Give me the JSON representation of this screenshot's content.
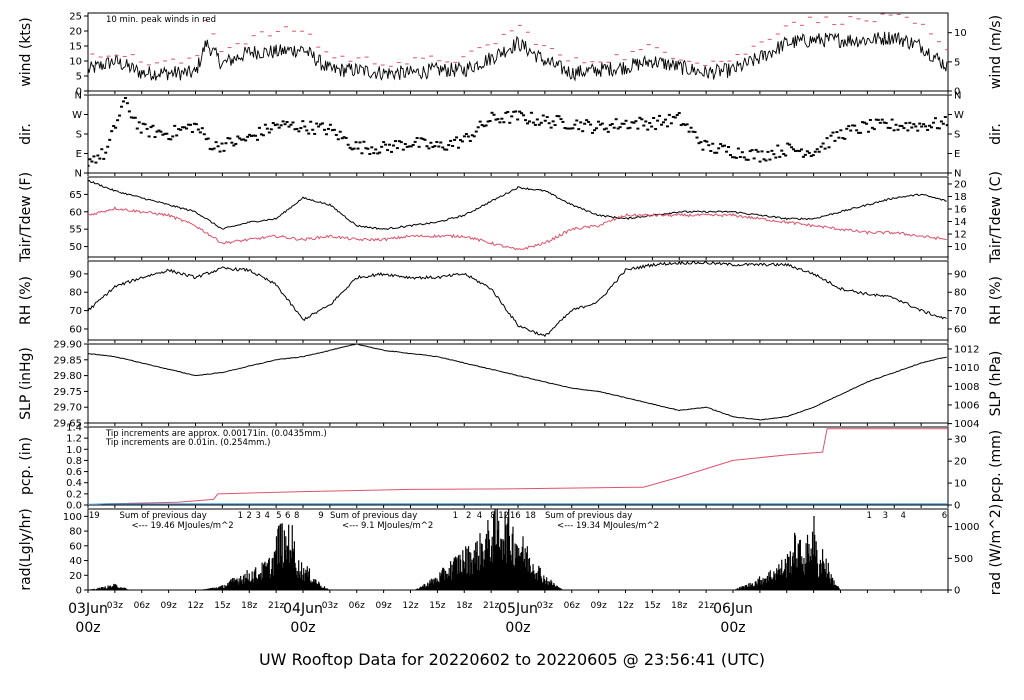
{
  "title": "UW Rooftop Data for 20220602  to  20220605 @ 23:56:41  (UTC)",
  "colors": {
    "red": "#df536b",
    "blue": "#2297e6",
    "purple": "#9b30e6",
    "title": "#2297e6",
    "line": "#000000"
  },
  "x_axis": {
    "hours_ticks": [
      "03z",
      "06z",
      "09z",
      "12z",
      "15z",
      "18z",
      "21z",
      "03z",
      "06z",
      "09z",
      "12z",
      "15z",
      "18z",
      "21z",
      "03z",
      "06z",
      "09z",
      "12z",
      "15z",
      "18z",
      "21z"
    ],
    "day_labels": [
      {
        "top": "03Jun",
        "bottom": "00z"
      },
      {
        "top": "04Jun",
        "bottom": "00z"
      },
      {
        "top": "05Jun",
        "bottom": "00z"
      },
      {
        "top": "06Jun",
        "bottom": "00z"
      }
    ]
  },
  "chart_data": [
    {
      "type": "line",
      "panel": "wind",
      "ylabel": "wind (kts)",
      "ylabel_right": "wind (m/s)",
      "ylim": [
        0,
        26
      ],
      "yticks": [
        0,
        5,
        10,
        15,
        20,
        25
      ],
      "yticks_right": [
        0,
        5,
        10
      ],
      "annotation": "10 min. peak winds in red",
      "x_hours": [
        0,
        3,
        6,
        9,
        12,
        13.2,
        15,
        18,
        21,
        24,
        27,
        30,
        33,
        36,
        39,
        42,
        45,
        48,
        51,
        54,
        57,
        60,
        63,
        66,
        69,
        72,
        75,
        78,
        81,
        84,
        87,
        90,
        93,
        96
      ],
      "series": [
        {
          "values": [
            7,
            10,
            6,
            6,
            6,
            16,
            9,
            13,
            13,
            14,
            7,
            7,
            6,
            6,
            7,
            7,
            11,
            16,
            10,
            6,
            7,
            8,
            10,
            8,
            6,
            7,
            11,
            16,
            17,
            17,
            17,
            18,
            15,
            8
          ]
        },
        {
          "values": [
            10,
            13,
            9,
            9,
            9,
            24,
            13,
            17,
            19,
            20,
            11,
            10,
            9,
            9,
            10,
            10,
            15,
            21,
            14,
            9,
            10,
            11,
            14,
            11,
            9,
            10,
            15,
            22,
            23,
            23,
            23,
            24,
            21,
            12
          ]
        }
      ]
    },
    {
      "type": "scatter",
      "panel": "dir",
      "ylabel": "dir.",
      "ylabel_right": "dir.",
      "yticks": [
        "N",
        "E",
        "S",
        "W",
        "N"
      ],
      "ylim": [
        0,
        360
      ],
      "x_hours": [
        0,
        2,
        4,
        6,
        9,
        12,
        14,
        18,
        21,
        24,
        27,
        30,
        33,
        36,
        39,
        42,
        45,
        48,
        51,
        54,
        57,
        60,
        63,
        66,
        69,
        72,
        75,
        78,
        81,
        84,
        87,
        90,
        93,
        96
      ],
      "series": [
        {
          "values": [
            60,
            90,
            330,
            200,
            180,
            220,
            120,
            160,
            220,
            215,
            200,
            120,
            115,
            140,
            120,
            150,
            250,
            260,
            240,
            230,
            210,
            230,
            230,
            250,
            120,
            100,
            80,
            110,
            100,
            180,
            215,
            220,
            220,
            230
          ]
        }
      ]
    },
    {
      "type": "line",
      "panel": "temp",
      "ylabel": "Tair/Tdew (F)",
      "ylabel_right": "Tair/Tdew (C)",
      "ylim": [
        47,
        70
      ],
      "yticks": [
        50,
        55,
        60,
        65
      ],
      "yticks_right": [
        10,
        12,
        14,
        16,
        18,
        20
      ],
      "x_hours": [
        0,
        3,
        6,
        9,
        12,
        15,
        18,
        21,
        24,
        27,
        30,
        33,
        36,
        39,
        42,
        45,
        48,
        51,
        54,
        57,
        60,
        63,
        66,
        69,
        72,
        75,
        78,
        81,
        84,
        87,
        90,
        93,
        96
      ],
      "series": [
        {
          "values": [
            69,
            66,
            64,
            62,
            60,
            55,
            57,
            58,
            64,
            62,
            56,
            55,
            56,
            57,
            59,
            63,
            67,
            66,
            62,
            59,
            58,
            59,
            60,
            60,
            60,
            59,
            58,
            58,
            60,
            62,
            64,
            65,
            63
          ]
        },
        {
          "values": [
            59,
            61,
            60,
            59,
            56,
            51,
            52,
            53,
            52,
            53,
            52,
            52,
            53,
            53,
            53,
            51,
            49,
            51,
            55,
            56,
            59,
            59,
            59,
            59,
            59,
            58,
            57,
            56,
            55,
            54,
            54,
            53,
            52
          ]
        }
      ]
    },
    {
      "type": "line",
      "panel": "rh",
      "ylabel": "RH (%)",
      "ylabel_right": "RH (%)",
      "ylim": [
        54,
        97
      ],
      "yticks": [
        60,
        70,
        80,
        90
      ],
      "yticks_right": [
        60,
        70,
        80,
        90
      ],
      "x_hours": [
        0,
        3,
        6,
        9,
        12,
        15,
        18,
        21,
        24,
        27,
        30,
        33,
        36,
        39,
        42,
        45,
        48,
        51,
        54,
        57,
        60,
        63,
        66,
        69,
        72,
        75,
        78,
        81,
        84,
        87,
        90,
        93,
        96
      ],
      "series": [
        {
          "values": [
            70,
            83,
            88,
            92,
            88,
            93,
            92,
            84,
            65,
            73,
            88,
            90,
            88,
            88,
            90,
            82,
            62,
            56,
            70,
            75,
            92,
            95,
            96,
            96,
            95,
            95,
            95,
            90,
            82,
            79,
            77,
            70,
            65
          ]
        }
      ]
    },
    {
      "type": "line",
      "panel": "slp",
      "ylabel": "SLP (inHg)",
      "ylabel_right": "SLP (hPa)",
      "ylim": [
        29.65,
        29.9
      ],
      "yticks": [
        29.65,
        29.7,
        29.75,
        29.8,
        29.85,
        29.9
      ],
      "yticks_right": [
        1004,
        1006,
        1008,
        1010,
        1012
      ],
      "x_hours": [
        0,
        3,
        6,
        9,
        12,
        15,
        18,
        21,
        24,
        27,
        30,
        33,
        36,
        39,
        42,
        45,
        48,
        51,
        54,
        57,
        60,
        63,
        66,
        69,
        72,
        75,
        78,
        81,
        84,
        87,
        90,
        93,
        96
      ],
      "series": [
        {
          "values": [
            29.87,
            29.86,
            29.84,
            29.82,
            29.8,
            29.81,
            29.83,
            29.85,
            29.86,
            29.88,
            29.9,
            29.88,
            29.87,
            29.86,
            29.84,
            29.82,
            29.8,
            29.78,
            29.76,
            29.75,
            29.73,
            29.71,
            29.69,
            29.7,
            29.67,
            29.66,
            29.67,
            29.7,
            29.74,
            29.78,
            29.81,
            29.84,
            29.86
          ]
        }
      ]
    },
    {
      "type": "line",
      "panel": "pcp",
      "ylabel": "pcp. (in)",
      "ylabel_right": "pcp. (mm)",
      "ylim": [
        0,
        1.4
      ],
      "yticks": [
        0,
        0.2,
        0.4,
        0.6,
        0.8,
        1.0,
        1.2,
        1.4
      ],
      "yticks_right": [
        0,
        10,
        20,
        30
      ],
      "annotations": [
        "Tip increments are approx. 0.00171in. (0.0435mm.)",
        "Tip increments are 0.01in. (0.254mm.)"
      ],
      "x_hours": [
        0,
        2,
        10,
        14,
        14.5,
        24,
        36,
        48,
        62,
        66,
        72,
        78,
        82,
        82.5,
        96
      ],
      "series": [
        {
          "values": [
            0,
            0.02,
            0.05,
            0.1,
            0.2,
            0.24,
            0.28,
            0.29,
            0.32,
            0.5,
            0.8,
            0.9,
            0.95,
            1.37,
            1.37
          ]
        },
        {
          "values": [
            0.01,
            0.02,
            0.02,
            0.02,
            0.02,
            0.02,
            0.02,
            0.02,
            0.02,
            0.02,
            0.02,
            0.02,
            0.02,
            0.02,
            0.02
          ]
        }
      ]
    },
    {
      "type": "area",
      "panel": "rad",
      "ylabel": "rad(Lgly/hr)",
      "ylabel_right": "rad (W/m^2)",
      "ylim": [
        0,
        110
      ],
      "yticks": [
        0,
        20,
        40,
        60,
        80,
        100
      ],
      "yticks_right": [
        0,
        500,
        1000
      ],
      "annotations": [
        {
          "x_hour": 1.5,
          "line1": "Sum of previous day",
          "line2": "<--- 19.46 MJoules/m^2"
        },
        {
          "x_hour": 25,
          "line1": "Sum of previous day",
          "line2": "<--- 9.1 MJoules/m^2"
        },
        {
          "x_hour": 49,
          "line1": "Sum of previous day",
          "line2": "<--- 19.34 MJoules/m^2"
        }
      ],
      "top_numbers": [
        {
          "x_hour": 0.7,
          "text": "19"
        },
        {
          "x_hour": 17,
          "text": "1"
        },
        {
          "x_hour": 18,
          "text": "2"
        },
        {
          "x_hour": 19,
          "text": "3"
        },
        {
          "x_hour": 20,
          "text": "4"
        },
        {
          "x_hour": 21.3,
          "text": "5"
        },
        {
          "x_hour": 22.3,
          "text": "6"
        },
        {
          "x_hour": 23.3,
          "text": "8"
        },
        {
          "x_hour": 26,
          "text": "9"
        },
        {
          "x_hour": 41,
          "text": "1"
        },
        {
          "x_hour": 42.5,
          "text": "2"
        },
        {
          "x_hour": 43.7,
          "text": "4"
        },
        {
          "x_hour": 45.2,
          "text": "8"
        },
        {
          "x_hour": 46.4,
          "text": "12"
        },
        {
          "x_hour": 47.7,
          "text": "16"
        },
        {
          "x_hour": 49.4,
          "text": "18"
        },
        {
          "x_hour": 87.2,
          "text": "1"
        },
        {
          "x_hour": 89,
          "text": "3"
        },
        {
          "x_hour": 91,
          "text": "4"
        },
        {
          "x_hour": 95.6,
          "text": "6"
        }
      ],
      "x_hours": [
        0,
        2,
        3,
        4,
        4.5,
        12.5,
        15,
        17,
        19,
        20.5,
        21.5,
        22,
        22.5,
        23.5,
        24.5,
        26,
        27,
        36.5,
        39,
        41,
        42,
        43,
        44,
        45,
        46,
        47,
        48,
        49,
        50,
        51,
        52,
        53,
        60,
        68,
        72,
        74,
        76,
        78,
        79,
        80,
        81,
        81.5,
        82,
        83,
        84
      ],
      "series": [
        {
          "values": [
            0,
            5,
            8,
            4,
            0,
            0,
            6,
            22,
            30,
            45,
            95,
            70,
            100,
            40,
            30,
            8,
            0,
            0,
            20,
            45,
            55,
            60,
            75,
            95,
            110,
            100,
            80,
            60,
            40,
            20,
            10,
            0,
            0,
            0,
            0,
            10,
            25,
            45,
            75,
            55,
            100,
            40,
            60,
            20,
            0
          ]
        }
      ]
    }
  ]
}
